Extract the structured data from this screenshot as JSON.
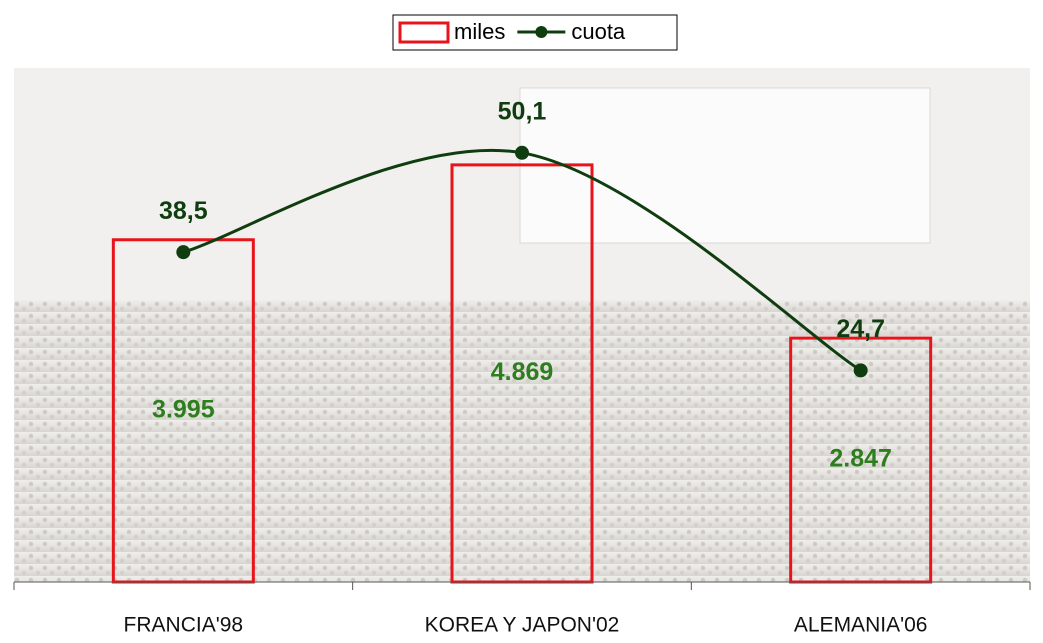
{
  "chart_data": {
    "type": "bar-line",
    "categories": [
      "FRANCIA'98",
      "KOREA Y JAPON'02",
      "ALEMANIA'06"
    ],
    "series": [
      {
        "name": "miles",
        "type": "bar",
        "color": "#e8141b",
        "label_color": "#2e7d1e",
        "values": [
          3995,
          4869,
          2847
        ],
        "value_labels": [
          "3.995",
          "4.869",
          "2.847"
        ]
      },
      {
        "name": "cuota",
        "type": "line",
        "axis": "y2",
        "color": "#0f3d0f",
        "values": [
          38.5,
          50.1,
          24.7
        ],
        "value_labels": [
          "38,5",
          "50,1",
          "24,7"
        ]
      }
    ],
    "ylim": [
      0,
      6000
    ],
    "y2lim": [
      0,
      60
    ],
    "legend": "top"
  }
}
